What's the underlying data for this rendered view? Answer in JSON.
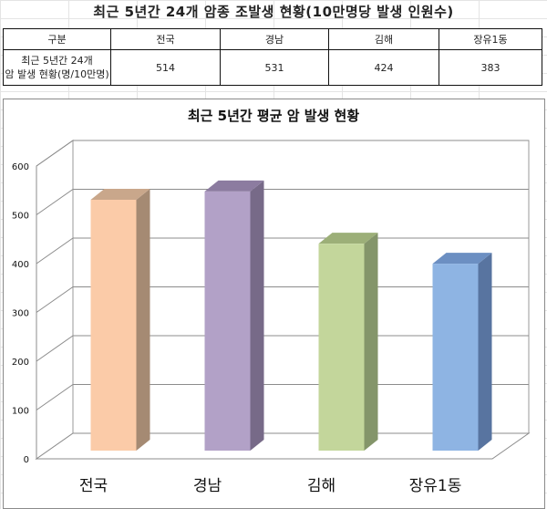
{
  "header": {
    "title": "최근 5년간 24개 암종 조발생 현황(10만명당 발생 인원수)"
  },
  "table": {
    "columns": [
      "구분",
      "전국",
      "경남",
      "김해",
      "장유1동"
    ],
    "row_label_line1": "최근 5년간 24개",
    "row_label_line2": "암 발생 현황(명/10만명)",
    "values": [
      "514",
      "531",
      "424",
      "383"
    ]
  },
  "chart_data": {
    "type": "bar",
    "title": "최근 5년간 평균 암 발생 현황",
    "categories": [
      "전국",
      "경남",
      "김해",
      "장유1동"
    ],
    "values": [
      514,
      531,
      424,
      383
    ],
    "ylim": [
      0,
      600
    ],
    "yticks": [
      "0",
      "100",
      "200",
      "300",
      "400",
      "500",
      "600"
    ],
    "grid": true,
    "style": "3d-column",
    "colors": {
      "front": [
        "#FBCBA8",
        "#B2A1C7",
        "#C3D69B",
        "#8EB4E3"
      ],
      "side": [
        "#A58A73",
        "#776A88",
        "#84956A",
        "#5874A0"
      ],
      "top": [
        "#C9A78B",
        "#8C7CA0",
        "#9CAF78",
        "#6C8FC2"
      ]
    }
  }
}
